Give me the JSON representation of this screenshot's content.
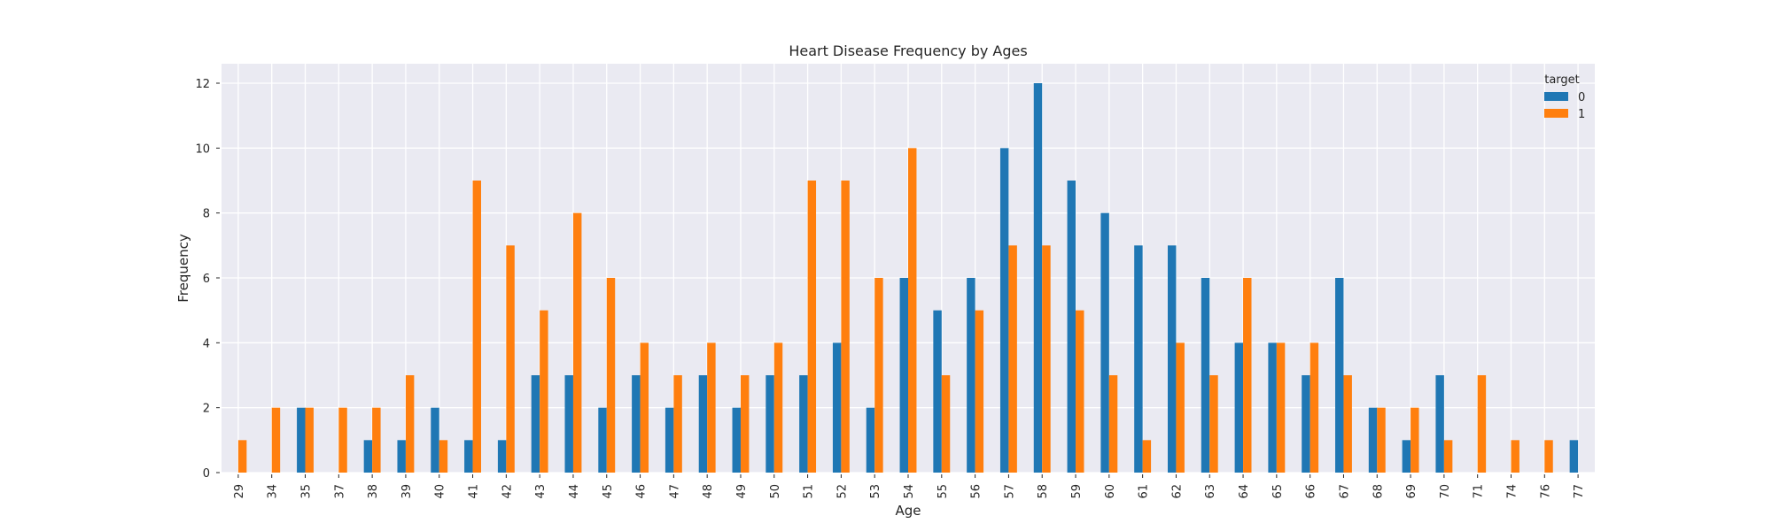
{
  "chart_data": {
    "type": "bar",
    "title": "Heart Disease Frequency by Ages",
    "xlabel": "Age",
    "ylabel": "Frequency",
    "ylim": [
      0,
      12.6
    ],
    "yticks": [
      0,
      2,
      4,
      6,
      8,
      10,
      12
    ],
    "grid": true,
    "legend": {
      "title": "target",
      "placement": "top-right"
    },
    "categories": [
      "29",
      "34",
      "35",
      "37",
      "38",
      "39",
      "40",
      "41",
      "42",
      "43",
      "44",
      "45",
      "46",
      "47",
      "48",
      "49",
      "50",
      "51",
      "52",
      "53",
      "54",
      "55",
      "56",
      "57",
      "58",
      "59",
      "60",
      "61",
      "62",
      "63",
      "64",
      "65",
      "66",
      "67",
      "68",
      "69",
      "70",
      "71",
      "74",
      "76",
      "77"
    ],
    "series": [
      {
        "name": "0",
        "color": "#1f77b4",
        "values": [
          0,
          0,
          2,
          0,
          1,
          1,
          2,
          1,
          1,
          3,
          3,
          2,
          3,
          2,
          3,
          2,
          3,
          3,
          4,
          2,
          6,
          5,
          6,
          10,
          12,
          9,
          8,
          7,
          7,
          6,
          4,
          4,
          3,
          6,
          2,
          1,
          3,
          0,
          0,
          0,
          1
        ]
      },
      {
        "name": "1",
        "color": "#ff7f0e",
        "values": [
          1,
          2,
          2,
          2,
          2,
          3,
          1,
          9,
          7,
          5,
          8,
          6,
          4,
          3,
          4,
          3,
          4,
          9,
          9,
          6,
          10,
          3,
          5,
          7,
          7,
          5,
          3,
          1,
          4,
          3,
          6,
          4,
          4,
          3,
          2,
          2,
          1,
          3,
          1,
          1,
          0
        ]
      }
    ],
    "colors": {
      "background": "#eaeaf2",
      "grid": "#ffffff",
      "text": "#262626"
    }
  }
}
